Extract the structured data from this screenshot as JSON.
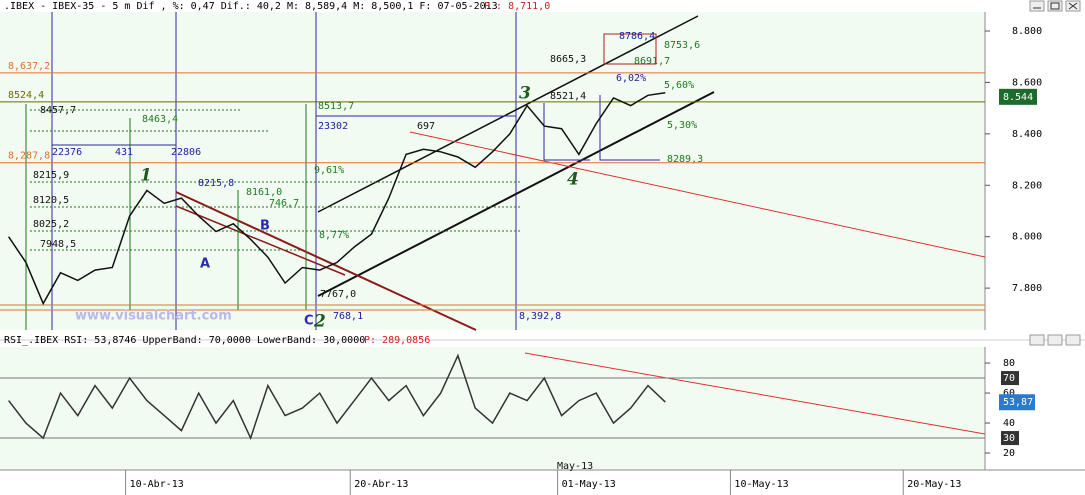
{
  "header": {
    "title": ".IBEX - IBEX-35 -  5 m Dif , %: 0,47 Dif.: 40,2 M: 8,589,4 M: 8,500,1 F: 07-05-2013",
    "price": "P : 8,711,0"
  },
  "chart_data": {
    "type": "line",
    "categories": [
      null,
      null,
      null,
      null,
      null,
      null,
      null,
      "10-Abr-13",
      null,
      null,
      null,
      null,
      null,
      null,
      null,
      null,
      null,
      null,
      null,
      null,
      "20-Abr-13",
      null,
      null,
      null,
      null,
      null,
      null,
      null,
      null,
      null,
      null,
      null,
      "01-May-13",
      null,
      null,
      null,
      null,
      null,
      null,
      null,
      null,
      null,
      "10-May-13",
      null,
      null,
      null,
      null,
      null,
      null,
      null,
      null,
      null,
      "20-May-13",
      null,
      null,
      null,
      null
    ],
    "series": [
      {
        "color": "#111111",
        "values": [
          8000,
          7900,
          7740,
          7860,
          7830,
          7870,
          7880,
          8080,
          8180,
          8130,
          8150,
          8080,
          8020,
          8050,
          7990,
          7920,
          7820,
          7880,
          7870,
          7900,
          7960,
          8010,
          8150,
          8320,
          8340,
          8330,
          8310,
          8270,
          8330,
          8400,
          8510,
          8430,
          8420,
          8320,
          8440,
          8540,
          8510,
          8550,
          8560,
          null,
          null,
          null,
          null,
          null,
          null,
          null,
          null,
          null,
          null,
          null,
          null,
          null,
          null,
          null,
          null,
          null,
          null
        ]
      },
      {
        "color": "#333333",
        "axis": "y2",
        "values": [
          55,
          40,
          30,
          60,
          45,
          65,
          50,
          70,
          55,
          45,
          35,
          60,
          40,
          55,
          30,
          65,
          45,
          50,
          60,
          40,
          55,
          70,
          55,
          65,
          45,
          60,
          85,
          50,
          40,
          60,
          55,
          70,
          45,
          55,
          60,
          40,
          50,
          65,
          54,
          null,
          null,
          null,
          null,
          null,
          null,
          null,
          null,
          null,
          null,
          null,
          null,
          null,
          null,
          null,
          null,
          null,
          null
        ]
      }
    ],
    "ylim": [
      7637,
      8874
    ],
    "yticks": [
      {
        "value": 7800,
        "label": "7.800"
      },
      {
        "value": 8000,
        "label": "8.000"
      },
      {
        "value": 8200,
        "label": "8.200"
      },
      {
        "value": 8400,
        "label": "8.400"
      },
      {
        "value": 8600,
        "label": "8.600"
      },
      {
        "value": 8800,
        "label": "8.800"
      }
    ],
    "y2lim": [
      8.7,
      90.7
    ],
    "y2ticks": [
      20,
      40,
      60,
      80
    ],
    "rsi_header": "RSI_.IBEX RSI: 53,8746 UpperBand: 70,0000 LowerBand: 30,0000",
    "rsi_price": "P: 289,0856",
    "bands": [
      70,
      30
    ],
    "last_price": {
      "value": 8544,
      "label": "8.544"
    },
    "last_rsi": {
      "value": 53.87,
      "label": "53,87"
    },
    "levels": [
      {
        "value": 8637.2,
        "label": "8,637,2",
        "color": "#e07030"
      },
      {
        "value": 8287.8,
        "label": "8,287,8",
        "color": "#e07030"
      },
      {
        "value": 8524.4,
        "label": "8524,4",
        "color": "#6b6b00"
      }
    ],
    "annotations": [
      "1",
      "2",
      "3",
      "4",
      "A",
      "B",
      "C",
      "www.visualchart.com",
      "8521,4",
      "8665,3",
      "8786,4",
      "8753,6",
      "8691,7",
      "5,60%",
      "6,02%",
      "8463,4",
      "8513,7",
      "23302",
      "22376",
      "431",
      "22806",
      "697",
      "9,61%",
      "8,77%",
      "8215,8",
      "8161,0",
      "746,7",
      "8457,7",
      "8215,9",
      "8120,5",
      "8025,2",
      "7948,5",
      "8,392,8",
      "768,1",
      "May-13",
      "8289,3",
      "5,30%",
      "7767,0"
    ]
  }
}
